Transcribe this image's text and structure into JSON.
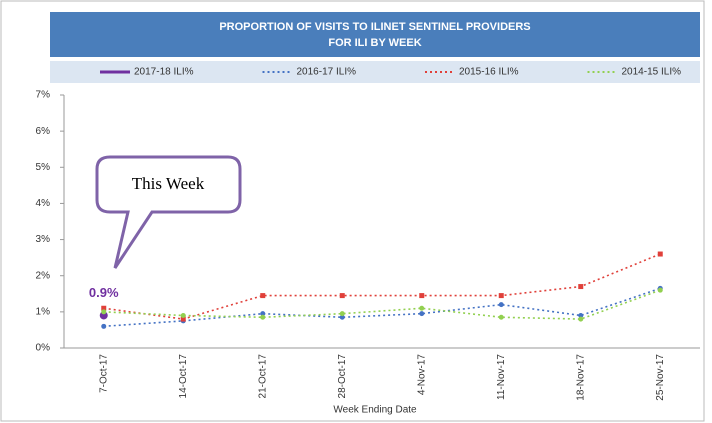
{
  "chart_data": {
    "type": "line",
    "title": [
      "PROPORTION OF VISITS TO ILINET SENTINEL PROVIDERS",
      "FOR ILI BY WEEK"
    ],
    "xlabel": "Week Ending Date",
    "annotation": "This Week",
    "categories": [
      "7-Oct-17",
      "14-Oct-17",
      "21-Oct-17",
      "28-Oct-17",
      "4-Nov-17",
      "11-Nov-17",
      "18-Nov-17",
      "25-Nov-17"
    ],
    "series": [
      {
        "name": "2017-18 ILI%",
        "color": "#7030a0",
        "dash": "solid",
        "values": [
          0.9,
          null,
          null,
          null,
          null,
          null,
          null,
          null
        ],
        "value_labels": [
          "0.9%",
          null,
          null,
          null,
          null,
          null,
          null,
          null
        ]
      },
      {
        "name": "2016-17 ILI%",
        "color": "#4472c4",
        "dash": "dotted",
        "values": [
          0.6,
          0.75,
          0.95,
          0.85,
          0.95,
          1.2,
          0.9,
          1.65
        ]
      },
      {
        "name": "2015-16 ILI%",
        "color": "#e0403a",
        "dash": "dotted",
        "values": [
          1.1,
          0.8,
          1.45,
          1.45,
          1.45,
          1.45,
          1.7,
          2.6
        ]
      },
      {
        "name": "2014-15 ILI%",
        "color": "#92d050",
        "dash": "dotted",
        "values": [
          1.0,
          0.9,
          0.85,
          0.95,
          1.1,
          0.85,
          0.8,
          1.6
        ]
      }
    ],
    "ylim": [
      0,
      7
    ],
    "yticks": [
      {
        "value": 0,
        "label": "0%"
      },
      {
        "value": 1,
        "label": "1%"
      },
      {
        "value": 2,
        "label": "2%"
      },
      {
        "value": 3,
        "label": "3%"
      },
      {
        "value": 4,
        "label": "4%"
      },
      {
        "value": 5,
        "label": "5%"
      },
      {
        "value": 6,
        "label": "6%"
      },
      {
        "value": 7,
        "label": "7%"
      }
    ],
    "grid": false
  }
}
